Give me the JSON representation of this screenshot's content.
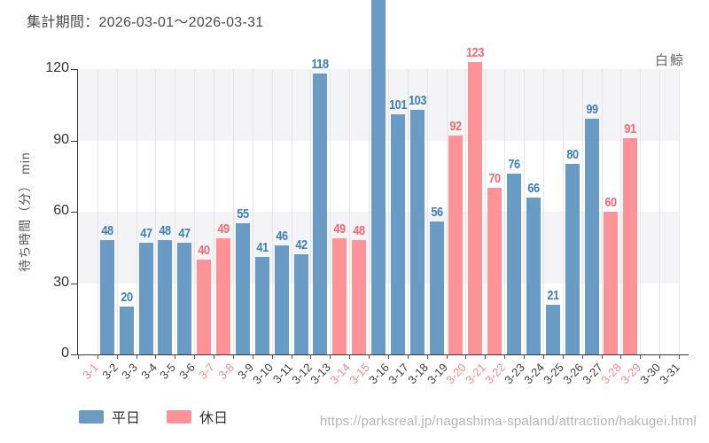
{
  "page": {
    "watermark_url": "https://parksreal.jp/nagashima-spaland/attraction/hakugei.html"
  },
  "chart_data": {
    "type": "bar",
    "title": "集計期間：2026-03-01～2026-03-31",
    "annotation": "白鯨",
    "xlabel": "",
    "ylabel": "待ち時間（分） min",
    "ylim": [
      0,
      120
    ],
    "yticks": [
      0,
      30,
      60,
      90,
      120
    ],
    "grid": "horizontal-bands-and-vertical-lines",
    "legend_position": "bottom-left",
    "legend": [
      {
        "name": "平日",
        "color": "#699BC4"
      },
      {
        "name": "休日",
        "color": "#FD9396"
      }
    ],
    "categories": [
      "3-1",
      "3-2",
      "3-3",
      "3-4",
      "3-5",
      "3-6",
      "3-7",
      "3-8",
      "3-9",
      "3-10",
      "3-11",
      "3-12",
      "3-13",
      "3-14",
      "3-15",
      "3-16",
      "3-17",
      "3-18",
      "3-19",
      "3-20",
      "3-21",
      "3-22",
      "3-23",
      "3-24",
      "3-25",
      "3-26",
      "3-27",
      "3-28",
      "3-29",
      "3-30",
      "3-31"
    ],
    "days": [
      {
        "label": "3-1",
        "kind": "holiday",
        "value": null
      },
      {
        "label": "3-2",
        "kind": "weekday",
        "value": 48
      },
      {
        "label": "3-3",
        "kind": "weekday",
        "value": 20
      },
      {
        "label": "3-4",
        "kind": "weekday",
        "value": 47
      },
      {
        "label": "3-5",
        "kind": "weekday",
        "value": 48
      },
      {
        "label": "3-6",
        "kind": "weekday",
        "value": 47
      },
      {
        "label": "3-7",
        "kind": "holiday",
        "value": 40
      },
      {
        "label": "3-8",
        "kind": "holiday",
        "value": 49
      },
      {
        "label": "3-9",
        "kind": "weekday",
        "value": 55
      },
      {
        "label": "3-10",
        "kind": "weekday",
        "value": 41
      },
      {
        "label": "3-11",
        "kind": "weekday",
        "value": 46
      },
      {
        "label": "3-12",
        "kind": "weekday",
        "value": 42
      },
      {
        "label": "3-13",
        "kind": "weekday",
        "value": 118
      },
      {
        "label": "3-14",
        "kind": "holiday",
        "value": 49
      },
      {
        "label": "3-15",
        "kind": "holiday",
        "value": 48
      },
      {
        "label": "3-16",
        "kind": "weekday",
        "value": 150,
        "clipped": true,
        "estimated": true
      },
      {
        "label": "3-17",
        "kind": "weekday",
        "value": 101
      },
      {
        "label": "3-18",
        "kind": "weekday",
        "value": 103
      },
      {
        "label": "3-19",
        "kind": "weekday",
        "value": 56
      },
      {
        "label": "3-20",
        "kind": "holiday",
        "value": 92
      },
      {
        "label": "3-21",
        "kind": "holiday",
        "value": 123
      },
      {
        "label": "3-22",
        "kind": "holiday",
        "value": 70
      },
      {
        "label": "3-23",
        "kind": "weekday",
        "value": 76
      },
      {
        "label": "3-24",
        "kind": "weekday",
        "value": 66
      },
      {
        "label": "3-25",
        "kind": "weekday",
        "value": 21
      },
      {
        "label": "3-26",
        "kind": "weekday",
        "value": 80
      },
      {
        "label": "3-27",
        "kind": "weekday",
        "value": 99
      },
      {
        "label": "3-28",
        "kind": "holiday",
        "value": 60
      },
      {
        "label": "3-29",
        "kind": "holiday",
        "value": 91
      },
      {
        "label": "3-30",
        "kind": "weekday",
        "value": null
      },
      {
        "label": "3-31",
        "kind": "weekday",
        "value": null
      }
    ],
    "colors": {
      "weekday_bar": "#699BC4",
      "holiday_bar": "#FD9396",
      "weekday_value_label": "#3E7FB6",
      "holiday_value_label": "#F4696F",
      "weekday_tick_label": "#3F3F3F",
      "holiday_tick_label": "#F8898D",
      "band": "#F4F4F6",
      "gridline": "#E5E5E8",
      "axis": "#3A3A3A"
    }
  }
}
